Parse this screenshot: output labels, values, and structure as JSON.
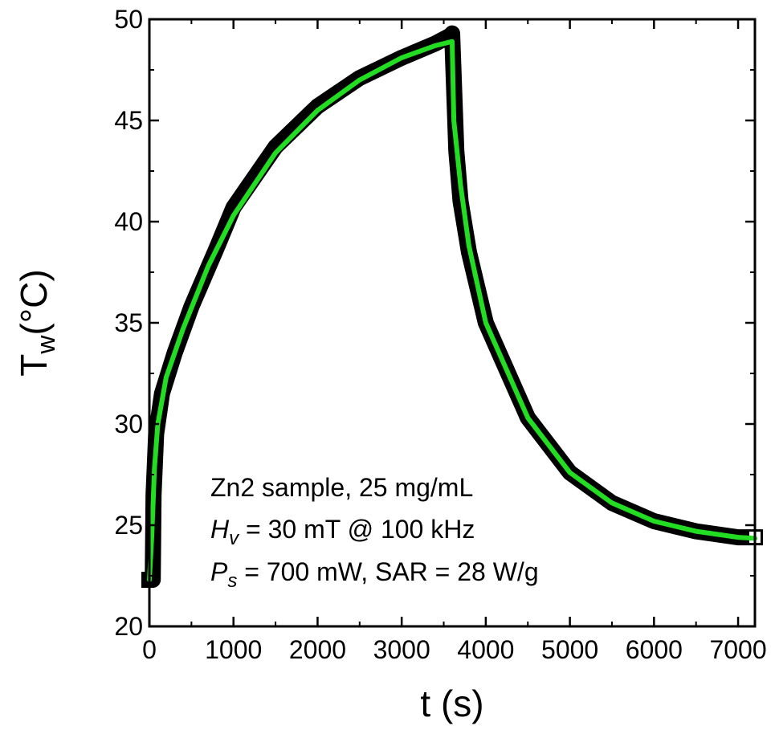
{
  "chart_data": {
    "type": "line",
    "xlabel_main": "t",
    "xlabel_unit": "(s)",
    "ylabel_main": "T",
    "ylabel_sub": "w",
    "ylabel_unit": "(°C)",
    "xlim": [
      0,
      7200
    ],
    "ylim": [
      20,
      50
    ],
    "xticks": [
      0,
      1000,
      2000,
      3000,
      4000,
      5000,
      6000,
      7000
    ],
    "xtick_labels": [
      "0",
      "1000",
      "2000",
      "3000",
      "4000",
      "5000",
      "6000",
      "7000"
    ],
    "yticks": [
      20,
      25,
      30,
      35,
      40,
      45,
      50
    ],
    "ytick_labels": [
      "20",
      "25",
      "30",
      "35",
      "40",
      "45",
      "50"
    ],
    "grid": false,
    "annotations": {
      "line1": "Zn2 sample, 25 mg/mL",
      "line2_symbol": "H",
      "line2_sub": "v",
      "line2_rest": " = 30 mT @ 100 kHz",
      "line3_symbol": "P",
      "line3_sub": "s",
      "line3_rest": " = 700 mW, SAR = 28 W/g"
    },
    "series": [
      {
        "color": "#000000",
        "x": [
          0,
          40,
          50,
          80,
          150,
          300,
          500,
          800,
          1000,
          1500,
          2000,
          2500,
          3000,
          3400,
          3580,
          3600,
          3650,
          3700,
          3800,
          4000,
          4500,
          5000,
          5500,
          6000,
          6500,
          7000,
          7200
        ],
        "y": [
          22.3,
          22.3,
          26.5,
          29.5,
          31.5,
          33.5,
          35.8,
          38.7,
          40.7,
          43.7,
          45.7,
          47.1,
          48.1,
          48.8,
          49.2,
          49.3,
          43.5,
          41.0,
          38.5,
          35.0,
          30.3,
          27.6,
          26.1,
          25.2,
          24.7,
          24.4,
          24.4
        ]
      },
      {
        "color": "#22dd22",
        "x": [
          0,
          30,
          60,
          100,
          200,
          400,
          700,
          1000,
          1500,
          2000,
          2500,
          3000,
          3400,
          3600,
          3620,
          3700,
          3800,
          4000,
          4500,
          5000,
          5500,
          6000,
          6500,
          7000,
          7200
        ],
        "y": [
          22.3,
          24.5,
          27.8,
          30.0,
          32.3,
          34.7,
          37.8,
          40.3,
          43.4,
          45.5,
          47.0,
          48.1,
          48.7,
          48.9,
          45.0,
          41.8,
          38.8,
          35.0,
          30.3,
          27.6,
          26.1,
          25.2,
          24.7,
          24.4,
          24.35
        ]
      }
    ]
  }
}
